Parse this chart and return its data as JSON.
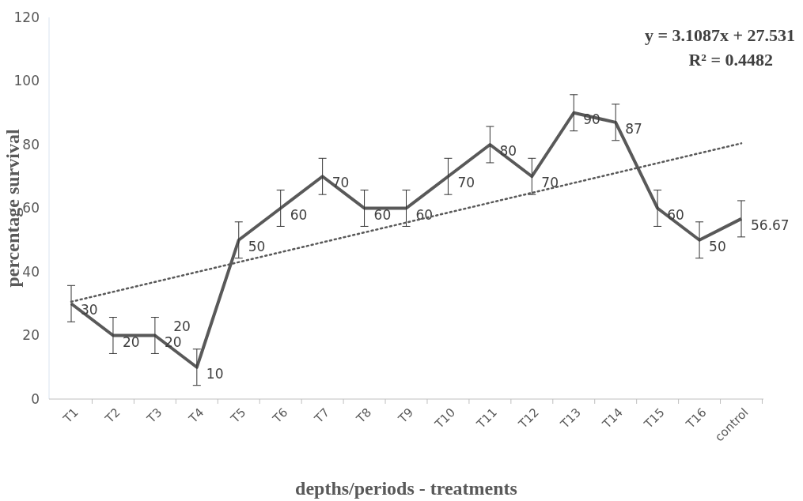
{
  "chart_data": {
    "type": "line",
    "xlabel": "depths/periods - treatments",
    "ylabel": "percentage survival",
    "categories": [
      "T1",
      "T2",
      "T3",
      "T4",
      "T5",
      "T6",
      "T7",
      "T8",
      "T9",
      "T10",
      "T11",
      "T12",
      "T13",
      "T14",
      "T15",
      "T16",
      "control"
    ],
    "series": [
      {
        "color": "#595959",
        "values": [
          30,
          20,
          20,
          10,
          50,
          60,
          70,
          60,
          60,
          70,
          80,
          70,
          90,
          87,
          60,
          50,
          56.67
        ],
        "errors": [
          5.7,
          5.7,
          5.7,
          5.7,
          5.7,
          5.7,
          5.7,
          5.7,
          5.7,
          5.7,
          5.7,
          5.7,
          5.7,
          5.7,
          5.7,
          5.7,
          5.7
        ],
        "value_labels": [
          "30",
          "20",
          "20",
          "10",
          "50",
          "60",
          "70",
          "60",
          "60",
          "70",
          "80",
          "70",
          "90",
          "87",
          "60",
          "50",
          "56.67"
        ]
      },
      {
        "type": "line",
        "color": "#595959",
        "line_style": "dotted",
        "x": [
          "T1",
          "control"
        ],
        "values": [
          30.6,
          80.4
        ]
      }
    ],
    "ylim": [
      0,
      120
    ],
    "yticks": [
      0,
      20,
      40,
      60,
      80,
      100,
      120
    ],
    "grid": false,
    "marker": "none",
    "annotations": [
      "y = 3.1087x + 27.531",
      "R² = 0.4482",
      {
        "text": "20",
        "x": "T4",
        "y": 20
      }
    ]
  }
}
